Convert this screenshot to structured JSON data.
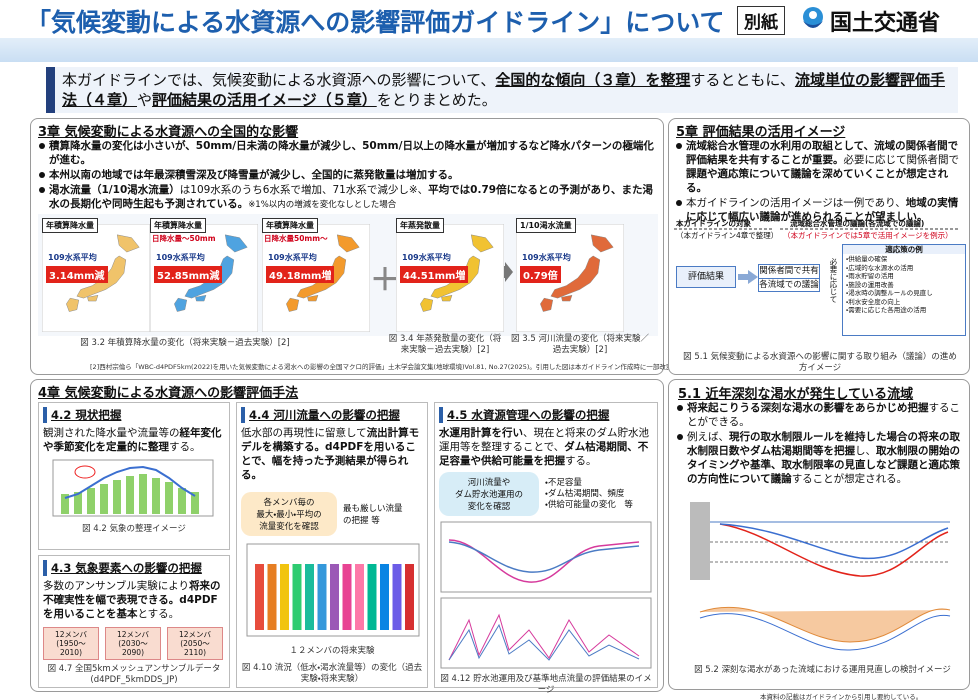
{
  "header": {
    "title": "「気候変動による水資源への影響評価ガイドライン」について",
    "badge": "別紙",
    "org": "国土交通省"
  },
  "summary": [
    "本ガイドラインでは、気候変動による水資源への影響について、",
    "全国的な傾向（３章）を整理",
    "するとともに、",
    "流域単位の影響評価手法（４章）",
    "や",
    "評価結果の活用イメージ（５章）",
    "をとりまとめた。"
  ],
  "ch3": {
    "heading": "3章 気候変動による水資源への全国的な影響",
    "bullets": [
      "積算降水量の変化は小さいが、50mm/日未満の降水量が減少し、50mm/日以上の降水量が増加するなど降水パターンの極端化が進む。",
      "本州以南の地域では年最深積雪深及び降雪量が減少し、全国的に蒸発散量は増加する。",
      [
        "渇水流量（1/10渇水流量）",
        "は109水系のうち6水系で増加、71水系で減少し※、",
        "平均では0.79倍になるとの予測があり、また渇水の長期化や同時生起も予測されている。",
        "※1%以内の増減を変化なしとした場合"
      ]
    ],
    "maps": [
      {
        "title": "年積算降水量",
        "avg": "109水系平均",
        "value": "3.14mm減"
      },
      {
        "title": "年積算降水量",
        "sub": "日降水量～50mm",
        "avg": "109水系平均",
        "value": "52.85mm減"
      },
      {
        "title": "年積算降水量",
        "sub": "日降水量50mm～",
        "avg": "109水系平均",
        "value": "49.18mm増"
      },
      {
        "title": "年蒸発散量",
        "avg": "109水系平均",
        "value": "44.51mm増"
      },
      {
        "title": "1/10渇水流量",
        "avg": "109水系平均",
        "value": "0.79倍"
      }
    ],
    "captions": [
      "図 3.2 年積算降水量の変化（将来実験－過去実験）[2]",
      "図 3.4 年蒸発散量の変化（将来実験－過去実験）[2]",
      "図 3.5 河川流量の変化（将来実験／過去実験）[2]"
    ],
    "reference": "[2]西村宗倫ら「WBC-d4PDF5km(2022)を用いた気候変動による渇水への影響の全国マクロ的評価」土木学会論文集(地球環境)Vol.81, No.27(2025)。引用した図は本ガイドライン作成時に一部改変。"
  },
  "ch5": {
    "heading": "5章 評価結果の活用イメージ",
    "bullets": [
      [
        "流域総合水管理の水利用の取組として、流域の関係者間で評価結果を共有することが重要。",
        "必要に応じて関係者間で",
        "課題や適応策について議論を深めていくことが想定される。"
      ],
      [
        "本ガイドラインの活用イメージは一例であり、",
        "地域の実情に応じて幅広い議論が進められることが望ましい。"
      ]
    ],
    "diagram": {
      "target": "本ガイドラインの対象",
      "target_note": "（本ガイドライン4章で整理）",
      "discussion": "流域総合水管理の議論(各流域での議論)",
      "discussion_note": "（本ガイドラインでは5章で活用イメージを例示）",
      "result": "評価結果",
      "share": "関係者間で共有",
      "each": "各流域での議論",
      "as_needed": "必要に応じて",
      "adapt_title": "適応策の例",
      "adapt": [
        "・供給量の確保",
        "・広域的な水源水の活用",
        "・雨水貯留の活用",
        "・施設の運用改善",
        "・渇水時の調整ルールの見直し",
        "・利水安全度の向上",
        "・需要に応じた各用途の活用"
      ]
    },
    "caption": "図 5.1 気候変動による水資源への影響に関する取り組み（議論）の進め方イメージ"
  },
  "ch4": {
    "heading": "4章 気候変動による水資源への影響評価手法",
    "s42": {
      "title": "4.2 現状把握",
      "text": [
        "観測された降水量や流量等の",
        "経年変化や季節変化を定量的に整理",
        "する。"
      ],
      "caption": "図 4.2 気象の整理イメージ"
    },
    "s43": {
      "title": "4.3 気象要素への影響の把握",
      "text": [
        "多数のアンサンブル実験により",
        "将来の不確実性を幅で表現できる。",
        "d4PDFを用いることを基本",
        "とする。"
      ],
      "members": [
        "12メンバ\n(1950～2010)",
        "12メンバ\n(2030～2090)",
        "12メンバ\n(2050～2110)"
      ],
      "caption": "図 4.7 全国5kmメッシュアンサンブルデータ(d4PDF_5kmDDS_JP)"
    },
    "s44": {
      "title": "4.4 河川流量への影響の把握",
      "text": [
        "低水部の再現性に留意して",
        "流出計算モデルを構築",
        "する。d4PDFを用いることで、幅を持った予測結果が得られる。"
      ],
      "callout": "各メンバ毎の\n最大・最小・平均の\n流量変化を確認",
      "note": "最も厳しい流量\nの把握 等",
      "members_label": "１２メンバの将来実験",
      "caption": "図 4.10 流況（低水・渇水流量等）の変化（過去実験・将来実験）"
    },
    "s45": {
      "title": "4.5 水資源管理への影響の把握",
      "text": [
        "水運用計算を行い",
        "、現在と将来のダム貯水池運用等を整理することで、",
        "ダム枯渇期間、不足容量や供給可能量を把握",
        "する。"
      ],
      "callout": "河川流量や\nダム貯水池運用の\n変化を確認",
      "list": [
        "・不足容量",
        "・ダム枯渇期間、頻度",
        "・供給可能量の変化　等"
      ],
      "caption": "図 4.12 貯水池運用及び基準地点流量の評価結果のイメージ"
    }
  },
  "s51": {
    "heading": "5.1 近年深刻な渇水が発生している流域",
    "bullets": [
      [
        "将来起こりうる深刻な渇水の影響をあらかじめ把握",
        "することができる。"
      ],
      [
        "例えば、",
        "現行の取水制限ルールを維持した場合の将来の取水制限日数やダム枯渇期間等を把握",
        "し、",
        "取水制限の開始のタイミングや基準、取水制限率の見直しなど課題と適応策の方向性について議論",
        "することが想定される。"
      ]
    ],
    "caption": "図 5.2 深刻な渇水があった流域における運用見直しの検討イメージ"
  },
  "footnote": "本資料の記載はガイドラインから引用し要約している。"
}
